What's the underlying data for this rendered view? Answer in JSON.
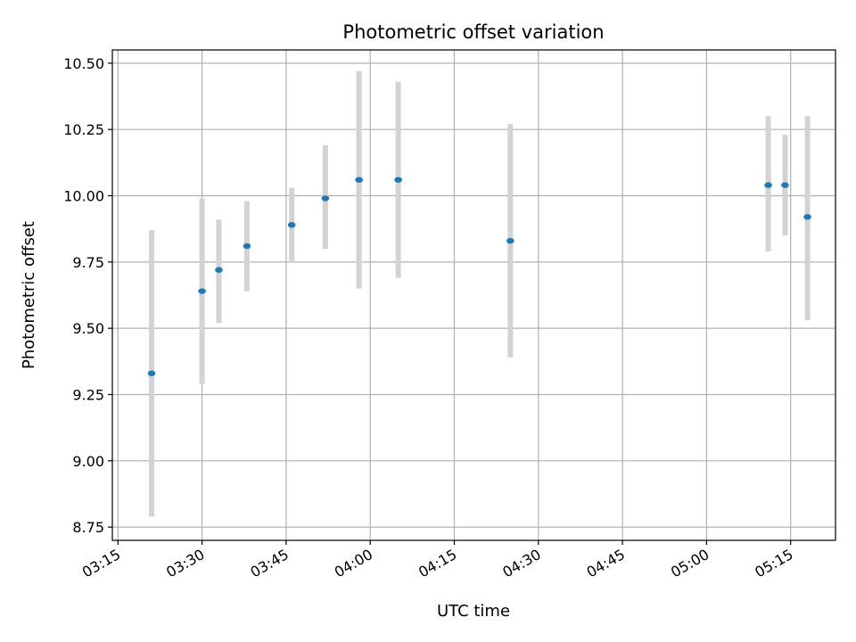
{
  "chart_data": {
    "type": "scatter",
    "title": "Photometric offset variation",
    "xlabel": "UTC time",
    "ylabel": "Photometric offset",
    "x_axis_kind": "time",
    "xlim": [
      "03:14",
      "05:23"
    ],
    "ylim": [
      8.7,
      10.55
    ],
    "x_ticks": [
      "03:15",
      "03:30",
      "03:45",
      "04:00",
      "04:15",
      "04:30",
      "04:45",
      "05:00",
      "05:15"
    ],
    "y_ticks": [
      "8.75",
      "9.00",
      "9.25",
      "9.50",
      "9.75",
      "10.00",
      "10.25",
      "10.50"
    ],
    "grid": true,
    "marker_color": "#1f77b4",
    "errorbar_color": "#d3d3d3",
    "points": [
      {
        "x": "03:21",
        "y": 9.33,
        "err_low": 8.79,
        "err_high": 9.87
      },
      {
        "x": "03:30",
        "y": 9.64,
        "err_low": 9.29,
        "err_high": 9.99
      },
      {
        "x": "03:33",
        "y": 9.72,
        "err_low": 9.52,
        "err_high": 9.91
      },
      {
        "x": "03:38",
        "y": 9.81,
        "err_low": 9.64,
        "err_high": 9.98
      },
      {
        "x": "03:46",
        "y": 9.89,
        "err_low": 9.75,
        "err_high": 10.03
      },
      {
        "x": "03:52",
        "y": 9.99,
        "err_low": 9.8,
        "err_high": 10.19
      },
      {
        "x": "03:58",
        "y": 10.06,
        "err_low": 9.65,
        "err_high": 10.47
      },
      {
        "x": "04:05",
        "y": 10.06,
        "err_low": 9.69,
        "err_high": 10.43
      },
      {
        "x": "04:25",
        "y": 9.83,
        "err_low": 9.39,
        "err_high": 10.27
      },
      {
        "x": "05:11",
        "y": 10.04,
        "err_low": 9.79,
        "err_high": 10.3
      },
      {
        "x": "05:14",
        "y": 10.04,
        "err_low": 9.85,
        "err_high": 10.23
      },
      {
        "x": "05:18",
        "y": 9.92,
        "err_low": 9.53,
        "err_high": 10.3
      }
    ]
  }
}
